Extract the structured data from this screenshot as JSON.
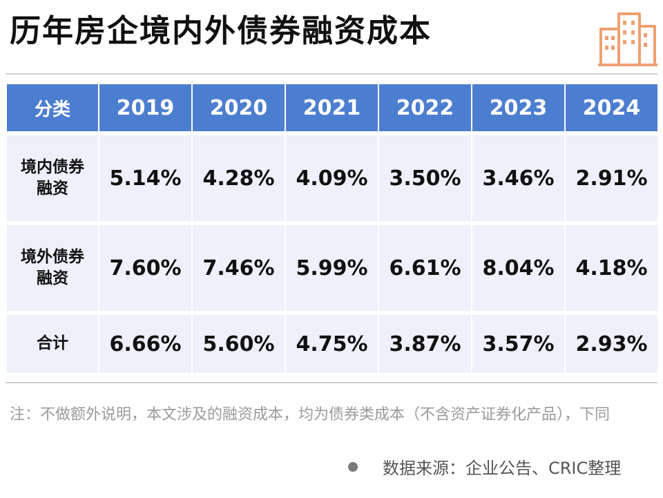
{
  "title": "历年房企境内外债券融资成本",
  "logo_icon": "building-icon",
  "colors": {
    "header_bg": "#4c7ed0",
    "cell_bg": "#eef0fb",
    "logo": "#f0a070"
  },
  "chart_data": {
    "type": "table",
    "title": "历年房企境内外债券融资成本",
    "columns": [
      "分类",
      "2019",
      "2020",
      "2021",
      "2022",
      "2023",
      "2024"
    ],
    "rows": [
      {
        "label": "境内债券融资",
        "values": [
          "5.14%",
          "4.28%",
          "4.09%",
          "3.50%",
          "3.46%",
          "2.91%"
        ]
      },
      {
        "label": "境外债券融资",
        "values": [
          "7.60%",
          "7.46%",
          "5.99%",
          "6.61%",
          "8.04%",
          "4.18%"
        ]
      },
      {
        "label": "合计",
        "values": [
          "6.66%",
          "5.60%",
          "4.75%",
          "3.87%",
          "3.57%",
          "2.93%"
        ]
      }
    ]
  },
  "note": "注：不做额外说明，本文涉及的融资成本，均为债券类成本（不含资产证券化产品），下同",
  "source": "数据来源：企业公告、CRIC整理"
}
